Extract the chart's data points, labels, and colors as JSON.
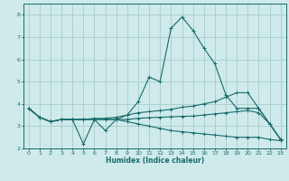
{
  "xlabel": "Humidex (Indice chaleur)",
  "xlim": [
    -0.5,
    23.5
  ],
  "ylim": [
    2,
    8.5
  ],
  "bg_color": "#ceeaea",
  "grid_color": "#aacccc",
  "line_color": "#1a6b6b",
  "xticks": [
    0,
    1,
    2,
    3,
    4,
    5,
    6,
    7,
    8,
    9,
    10,
    11,
    12,
    13,
    14,
    15,
    16,
    17,
    18,
    19,
    20,
    21,
    22,
    23
  ],
  "yticks": [
    2,
    3,
    4,
    5,
    6,
    7,
    8
  ],
  "series": [
    {
      "x": [
        0,
        1,
        2,
        3,
        4,
        5,
        6,
        7,
        8,
        9,
        10,
        11,
        12,
        13,
        14,
        15,
        16,
        17,
        18,
        19,
        20,
        21,
        22,
        23
      ],
      "y": [
        3.8,
        3.4,
        3.2,
        3.3,
        3.3,
        2.2,
        3.3,
        2.8,
        3.3,
        3.5,
        4.1,
        5.2,
        5.0,
        7.4,
        7.9,
        7.3,
        6.5,
        5.8,
        4.4,
        3.8,
        3.8,
        3.8,
        3.1,
        2.4
      ]
    },
    {
      "x": [
        0,
        1,
        2,
        3,
        4,
        5,
        6,
        7,
        8,
        9,
        10,
        11,
        12,
        13,
        14,
        15,
        16,
        17,
        18,
        19,
        20,
        21,
        22,
        23
      ],
      "y": [
        3.8,
        3.4,
        3.2,
        3.3,
        3.3,
        3.3,
        3.35,
        3.35,
        3.4,
        3.5,
        3.6,
        3.65,
        3.7,
        3.75,
        3.85,
        3.9,
        4.0,
        4.1,
        4.3,
        4.5,
        4.5,
        3.8,
        3.1,
        2.4
      ]
    },
    {
      "x": [
        0,
        1,
        2,
        3,
        4,
        5,
        6,
        7,
        8,
        9,
        10,
        11,
        12,
        13,
        14,
        15,
        16,
        17,
        18,
        19,
        20,
        21,
        22,
        23
      ],
      "y": [
        3.8,
        3.4,
        3.2,
        3.3,
        3.3,
        3.3,
        3.3,
        3.3,
        3.3,
        3.3,
        3.35,
        3.38,
        3.4,
        3.42,
        3.44,
        3.45,
        3.5,
        3.55,
        3.6,
        3.65,
        3.7,
        3.6,
        3.1,
        2.4
      ]
    },
    {
      "x": [
        0,
        1,
        2,
        3,
        4,
        5,
        6,
        7,
        8,
        9,
        10,
        11,
        12,
        13,
        14,
        15,
        16,
        17,
        18,
        19,
        20,
        21,
        22,
        23
      ],
      "y": [
        3.8,
        3.4,
        3.2,
        3.3,
        3.3,
        3.3,
        3.3,
        3.3,
        3.3,
        3.2,
        3.1,
        3.0,
        2.9,
        2.8,
        2.75,
        2.7,
        2.65,
        2.6,
        2.55,
        2.5,
        2.5,
        2.5,
        2.4,
        2.35
      ]
    }
  ]
}
